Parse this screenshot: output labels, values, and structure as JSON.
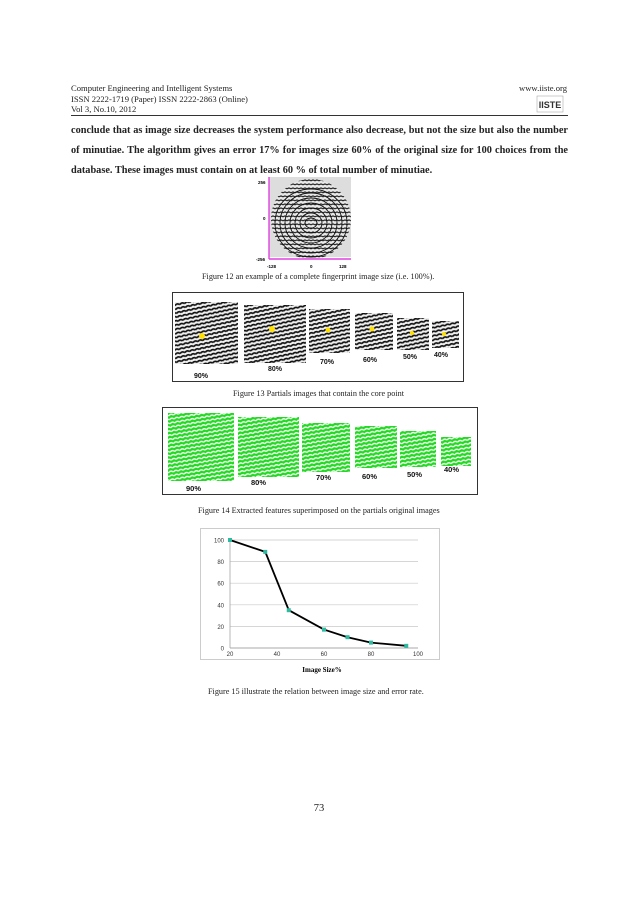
{
  "header": {
    "journal": "Computer Engineering and Intelligent Systems",
    "issn": "ISSN 2222-1719 (Paper) ISSN 2222-2863 (Online)",
    "volume": "Vol 3, No.10, 2012",
    "website": "www.iiste.org",
    "logo_text": "IISTE"
  },
  "body_text": "conclude that as image size decreases the system performance also decrease, but not the size but also the number of minutiae. The algorithm gives an error 17% for images size 60% of the original size for 100 choices from the database. These images must contain on at least 60 % of total number of minutiae.",
  "figure12": {
    "caption": "Figure 12 an example of a complete fingerprint image size (i.e. 100%).",
    "axis_y_top": "256",
    "axis_y_mid": "0",
    "axis_y_bottom": "-256",
    "axis_x_left": "-128",
    "axis_x_mid": "0",
    "axis_x_right": "128"
  },
  "figure13": {
    "caption": "Figure 13 Partials images that contain the core point",
    "labels": [
      "90%",
      "80%",
      "70%",
      "60%",
      "50%",
      "40%"
    ]
  },
  "figure14": {
    "caption": "Figure 14 Extracted features superimposed on the partials original images",
    "labels": [
      "90%",
      "80%",
      "70%",
      "60%",
      "50%",
      "40%"
    ]
  },
  "figure15": {
    "caption": "Figure 15 illustrate the relation between image size and error rate."
  },
  "chart_data": {
    "type": "line",
    "x": [
      20,
      35,
      45,
      60,
      70,
      80,
      95
    ],
    "series": [
      {
        "values": [
          100,
          89,
          35,
          17,
          10,
          5,
          2
        ],
        "color": "#000000",
        "marker_color": "#2fb9a0"
      }
    ],
    "xlabel": "Image Size%",
    "ylabel": "",
    "xlim": [
      20,
      100
    ],
    "ylim": [
      0,
      100
    ],
    "x_ticks": [
      20,
      40,
      60,
      80,
      100
    ],
    "y_ticks": [
      0,
      20,
      40,
      60,
      80,
      100
    ],
    "grid": true
  },
  "page_number": "73"
}
